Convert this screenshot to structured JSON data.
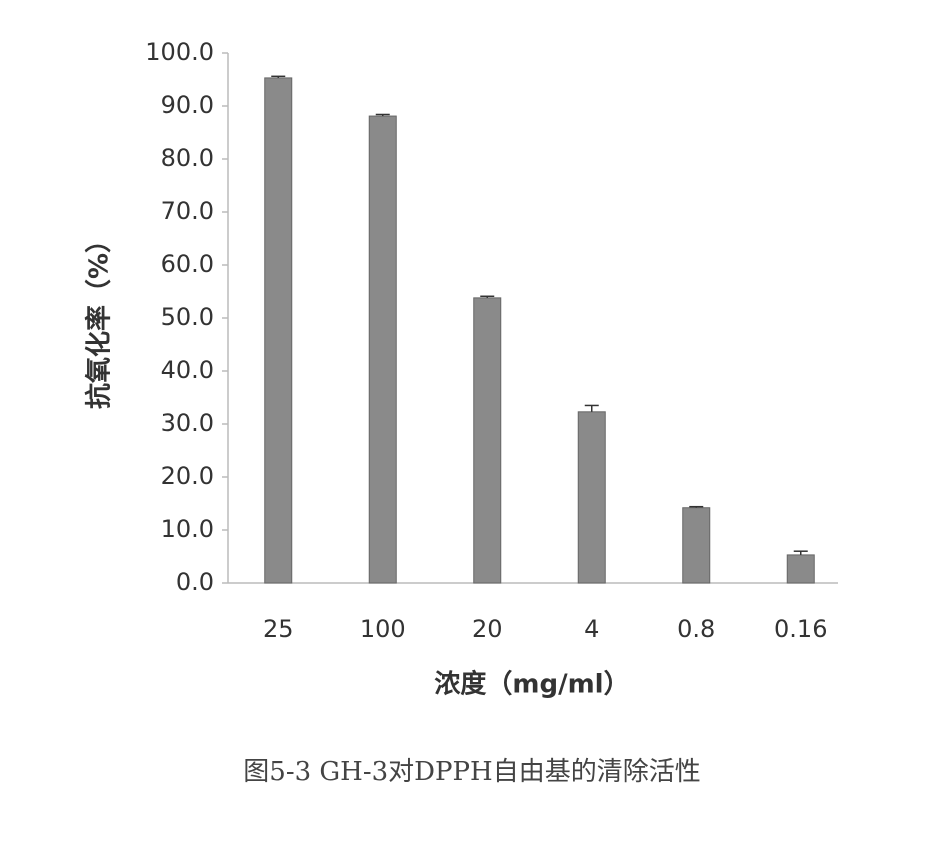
{
  "chart_data": {
    "type": "bar",
    "title": "图5-3 GH-3对DPPH自由基的清除活性",
    "x_label": "浓度（mg/ml）",
    "y_label": "抗氧化率（%）",
    "categories": [
      "25",
      "100",
      "20",
      "4",
      "0.8",
      "0.16"
    ],
    "values": [
      95.3,
      88.1,
      53.8,
      32.3,
      14.2,
      5.3
    ],
    "errors": [
      0.3,
      0.3,
      0.3,
      1.2,
      0.2,
      0.7
    ],
    "color": "#8a8a8a",
    "ylim": [
      0,
      100
    ],
    "yticks": [
      {
        "value": 0,
        "label": "0.0"
      },
      {
        "value": 10,
        "label": "10.0"
      },
      {
        "value": 20,
        "label": "20.0"
      },
      {
        "value": 30,
        "label": "30.0"
      },
      {
        "value": 40,
        "label": "40.0"
      },
      {
        "value": 50,
        "label": "50.0"
      },
      {
        "value": 60,
        "label": "60.0"
      },
      {
        "value": 70,
        "label": "70.0"
      },
      {
        "value": 80,
        "label": "80.0"
      },
      {
        "value": 90,
        "label": "90.0"
      },
      {
        "value": 100,
        "label": "100.0"
      }
    ],
    "grid": false
  }
}
